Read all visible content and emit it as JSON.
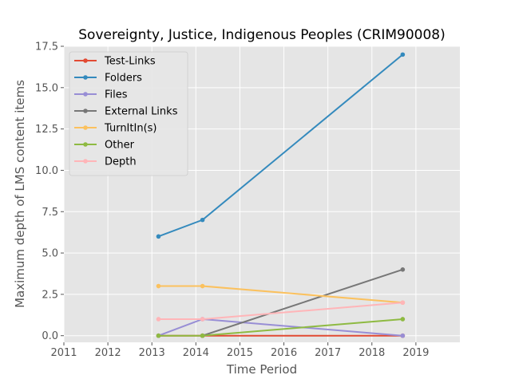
{
  "chart_data": {
    "type": "line",
    "title": "Sovereignty, Justice, Indigenous Peoples (CRIM90008)",
    "xlabel": "Time Period",
    "ylabel": "Maximum depth of LMS content items",
    "xlim": [
      2011,
      2020
    ],
    "ylim": [
      -0.4,
      17.5
    ],
    "xticks": [
      "2011",
      "2012",
      "2013",
      "2014",
      "2015",
      "2016",
      "2017",
      "2018",
      "2019"
    ],
    "yticks": [
      "0.0",
      "2.5",
      "5.0",
      "7.5",
      "10.0",
      "12.5",
      "15.0",
      "17.5"
    ],
    "grid": true,
    "legend_position": "top-left",
    "x": [
      2013.15,
      2014.15,
      2018.7
    ],
    "series": [
      {
        "name": "Test-Links",
        "color": "#E24A33",
        "values": [
          0,
          0,
          0
        ]
      },
      {
        "name": "Folders",
        "color": "#348ABD",
        "values": [
          6,
          7,
          17
        ]
      },
      {
        "name": "Files",
        "color": "#988ED5",
        "values": [
          0,
          1,
          0
        ]
      },
      {
        "name": "External Links",
        "color": "#777777",
        "values": [
          null,
          0,
          4
        ]
      },
      {
        "name": "TurnItIn(s)",
        "color": "#FBC15E",
        "values": [
          3,
          3,
          2
        ]
      },
      {
        "name": "Other",
        "color": "#8EBA42",
        "values": [
          0,
          0,
          1
        ]
      },
      {
        "name": "Depth",
        "color": "#FFB5B8",
        "values": [
          1,
          1,
          2
        ]
      }
    ]
  }
}
